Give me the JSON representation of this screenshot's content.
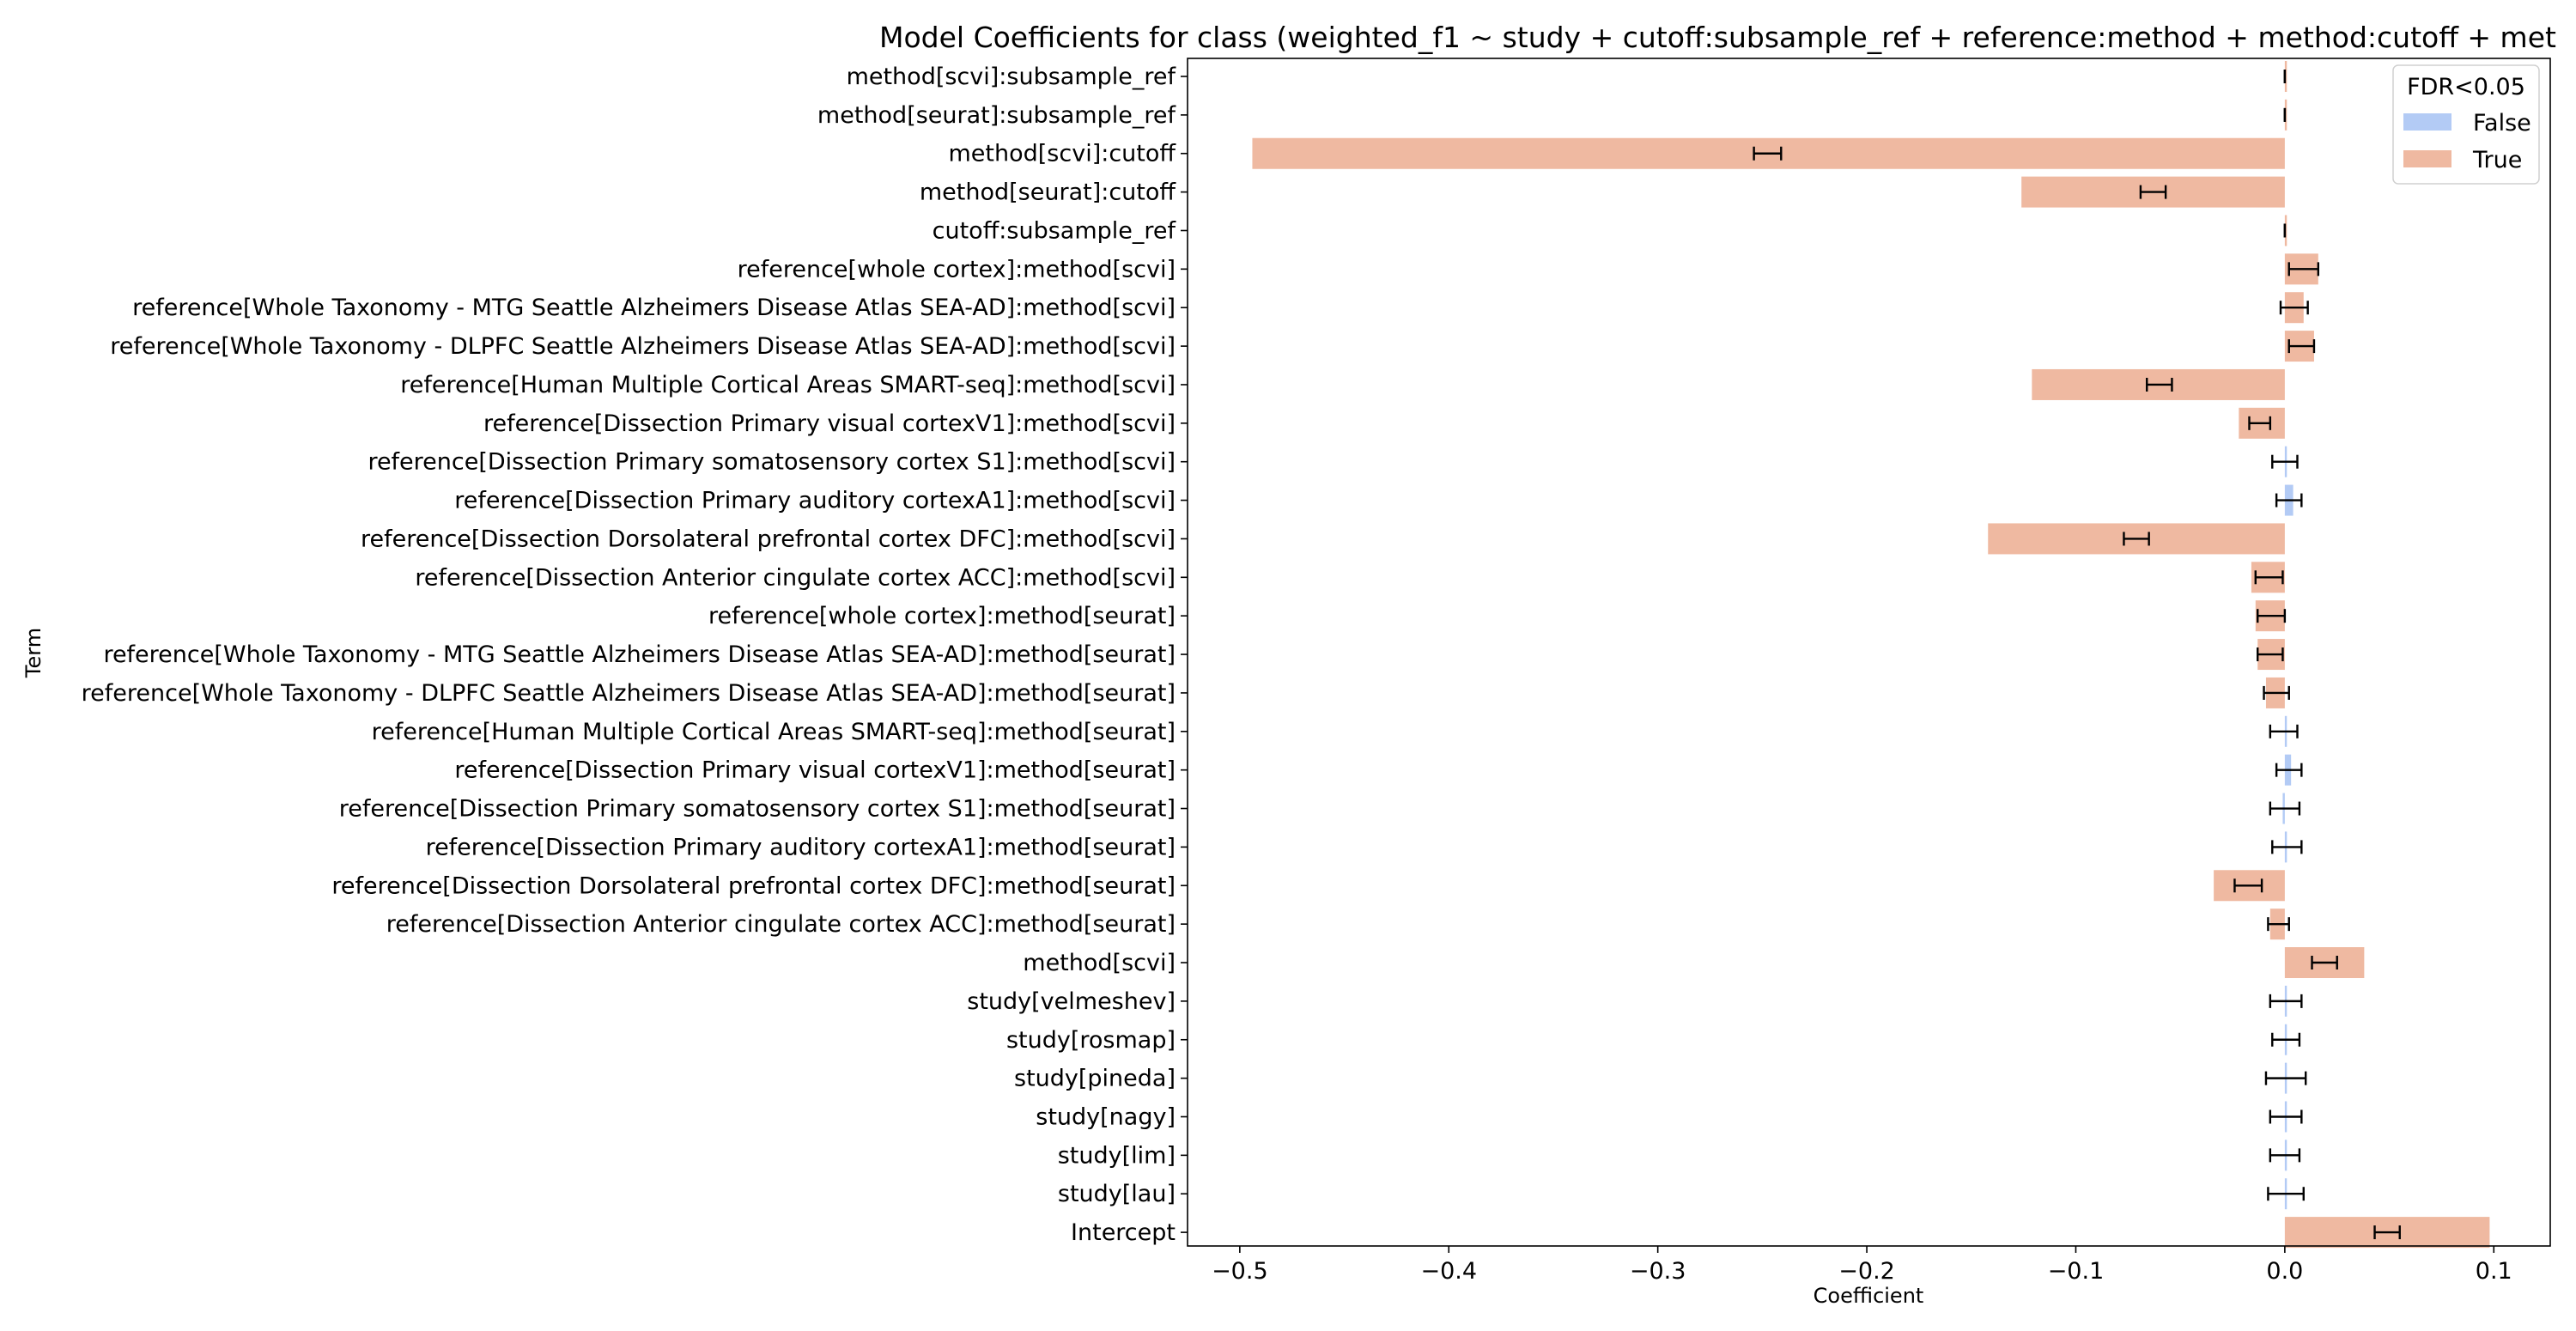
{
  "chart_data": {
    "type": "bar",
    "orientation": "horizontal",
    "title": "Model Coefficients for class (weighted_f1 ~ study + cutoff:subsample_ref + reference:method + method:cutoff + met",
    "xlabel": "Coefficient",
    "ylabel": "Term",
    "xlim": [
      -0.525,
      0.127
    ],
    "xticks": [
      -0.5,
      -0.4,
      -0.3,
      -0.2,
      -0.1,
      0.0,
      0.1
    ],
    "xtick_labels": [
      "−0.5",
      "−0.4",
      "−0.3",
      "−0.2",
      "−0.1",
      "0.0",
      "0.1"
    ],
    "grid": false,
    "legend": {
      "title": "FDR<0.05",
      "position": "top-right",
      "entries": [
        {
          "label": "False",
          "color": "#b3cbf5"
        },
        {
          "label": "True",
          "color": "#efb9a1"
        }
      ]
    },
    "categories": [
      "method[scvi]:subsample_ref",
      "method[seurat]:subsample_ref",
      "method[scvi]:cutoff",
      "method[seurat]:cutoff",
      "cutoff:subsample_ref",
      "reference[whole cortex]:method[scvi]",
      "reference[Whole Taxonomy - MTG Seattle Alzheimers Disease Atlas SEA-AD]:method[scvi]",
      "reference[Whole Taxonomy - DLPFC Seattle Alzheimers Disease Atlas SEA-AD]:method[scvi]",
      "reference[Human Multiple Cortical Areas SMART-seq]:method[scvi]",
      "reference[Dissection Primary visual cortexV1]:method[scvi]",
      "reference[Dissection Primary somatosensory cortex S1]:method[scvi]",
      "reference[Dissection Primary auditory cortexA1]:method[scvi]",
      "reference[Dissection Dorsolateral prefrontal cortex DFC]:method[scvi]",
      "reference[Dissection Anterior cingulate cortex ACC]:method[scvi]",
      "reference[whole cortex]:method[seurat]",
      "reference[Whole Taxonomy - MTG Seattle Alzheimers Disease Atlas SEA-AD]:method[seurat]",
      "reference[Whole Taxonomy - DLPFC Seattle Alzheimers Disease Atlas SEA-AD]:method[seurat]",
      "reference[Human Multiple Cortical Areas SMART-seq]:method[seurat]",
      "reference[Dissection Primary visual cortexV1]:method[seurat]",
      "reference[Dissection Primary somatosensory cortex S1]:method[seurat]",
      "reference[Dissection Primary auditory cortexA1]:method[seurat]",
      "reference[Dissection Dorsolateral prefrontal cortex DFC]:method[seurat]",
      "reference[Dissection Anterior cingulate cortex ACC]:method[seurat]",
      "method[scvi]",
      "study[velmeshev]",
      "study[rosmap]",
      "study[pineda]",
      "study[nagy]",
      "study[lim]",
      "study[lau]",
      "Intercept"
    ],
    "values": [
      0.0,
      0.0,
      -0.494,
      -0.126,
      0.0,
      0.016,
      0.009,
      0.014,
      -0.121,
      -0.022,
      0.0,
      0.004,
      -0.142,
      -0.016,
      -0.014,
      -0.013,
      -0.009,
      0.0,
      0.003,
      -0.001,
      0.001,
      -0.034,
      -0.007,
      0.038,
      0.0,
      0.0,
      0.0,
      0.0,
      0.0,
      0.0,
      0.098
    ],
    "ci_low": [
      0.0,
      0.0,
      -0.254,
      -0.069,
      0.0,
      0.002,
      -0.002,
      0.002,
      -0.066,
      -0.017,
      -0.006,
      -0.004,
      -0.077,
      -0.014,
      -0.013,
      -0.013,
      -0.01,
      -0.007,
      -0.004,
      -0.007,
      -0.006,
      -0.024,
      -0.008,
      0.013,
      -0.007,
      -0.006,
      -0.009,
      -0.007,
      -0.007,
      -0.008,
      0.043
    ],
    "ci_high": [
      0.0,
      0.0,
      -0.241,
      -0.057,
      0.0,
      0.016,
      0.011,
      0.014,
      -0.054,
      -0.007,
      0.006,
      0.008,
      -0.065,
      -0.001,
      0.0,
      -0.001,
      0.002,
      0.006,
      0.008,
      0.007,
      0.008,
      -0.011,
      0.002,
      0.025,
      0.008,
      0.007,
      0.01,
      0.008,
      0.007,
      0.009,
      0.055
    ],
    "significant": [
      true,
      true,
      true,
      true,
      true,
      true,
      true,
      true,
      true,
      true,
      false,
      false,
      true,
      true,
      true,
      true,
      true,
      false,
      false,
      false,
      false,
      true,
      true,
      true,
      false,
      false,
      false,
      false,
      false,
      false,
      true
    ]
  }
}
